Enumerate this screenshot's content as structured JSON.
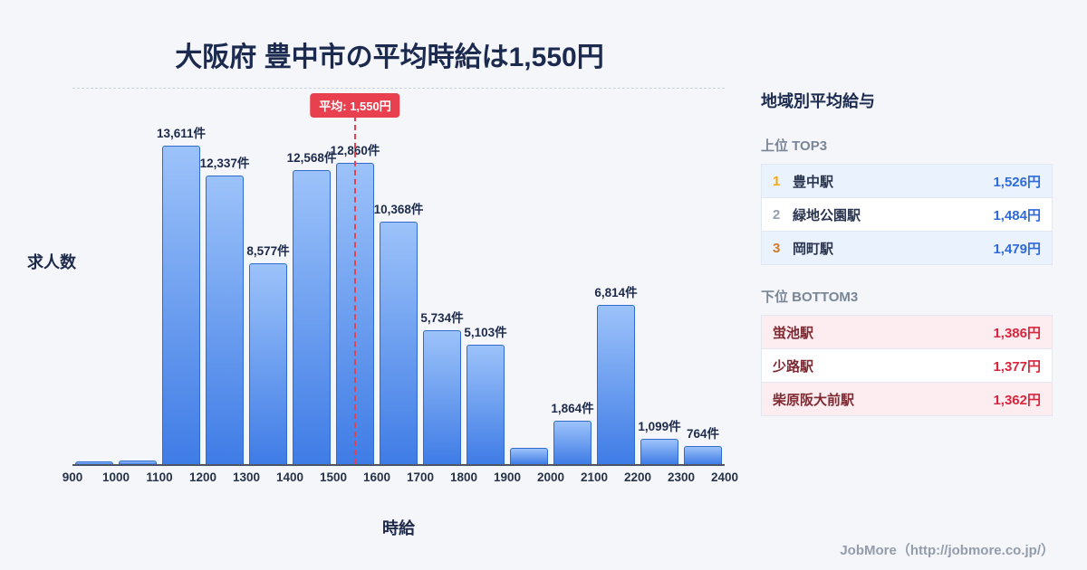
{
  "title": "大阪府 豊中市の平均時給は1,550円",
  "chart_data": {
    "type": "bar",
    "title": "大阪府 豊中市の平均時給は1,550円",
    "xlabel": "時給",
    "ylabel": "求人数",
    "x_range": [
      900,
      2400
    ],
    "bin_width": 100,
    "x_ticks": [
      "900",
      "1000",
      "1100",
      "1200",
      "1300",
      "1400",
      "1500",
      "1600",
      "1700",
      "1800",
      "1900",
      "2000",
      "2100",
      "2200",
      "2300",
      "2400"
    ],
    "bin_starts": [
      900,
      1000,
      1100,
      1200,
      1300,
      1400,
      1500,
      1600,
      1700,
      1800,
      1900,
      2000,
      2100,
      2200,
      2300
    ],
    "values": [
      110,
      140,
      13611,
      12337,
      8577,
      12568,
      12860,
      10368,
      5734,
      5103,
      700,
      1864,
      6814,
      1099,
      764
    ],
    "bar_labels": [
      "",
      "",
      "13,611件",
      "12,337件",
      "8,577件",
      "12,568件",
      "12,860件",
      "10,368件",
      "5,734件",
      "5,103件",
      "",
      "1,864件",
      "6,814件",
      "1,099件",
      "764件"
    ],
    "y_max_value": 13611,
    "grid": "off",
    "average": {
      "value": 1550,
      "label": "平均: 1,550円"
    }
  },
  "sidebar": {
    "heading": "地域別平均給与",
    "top": {
      "label": "上位 TOP3",
      "rows": [
        {
          "rank": "1",
          "name": "豊中駅",
          "value": "1,526円"
        },
        {
          "rank": "2",
          "name": "緑地公園駅",
          "value": "1,484円"
        },
        {
          "rank": "3",
          "name": "岡町駅",
          "value": "1,479円"
        }
      ]
    },
    "bottom": {
      "label": "下位 BOTTOM3",
      "rows": [
        {
          "name": "蛍池駅",
          "value": "1,386円"
        },
        {
          "name": "少路駅",
          "value": "1,377円"
        },
        {
          "name": "柴原阪大前駅",
          "value": "1,362円"
        }
      ]
    }
  },
  "footer": {
    "credit": "JobMore（http://jobmore.co.jp/）"
  },
  "colors": {
    "background": "#f4f6fa",
    "title_navy": "#1b2a4e",
    "bar_gradient_top": "#9cc2f9",
    "bar_gradient_bottom": "#3f7ce6",
    "bar_border": "#2f6ad0",
    "average_red": "#e8404f",
    "top_value_blue": "#2e6bd9",
    "bottom_value_red": "#d7263d",
    "rank1_gold": "#f2a80c",
    "rank2_gray": "#97a0ae",
    "rank3_bronze": "#d07a28"
  }
}
